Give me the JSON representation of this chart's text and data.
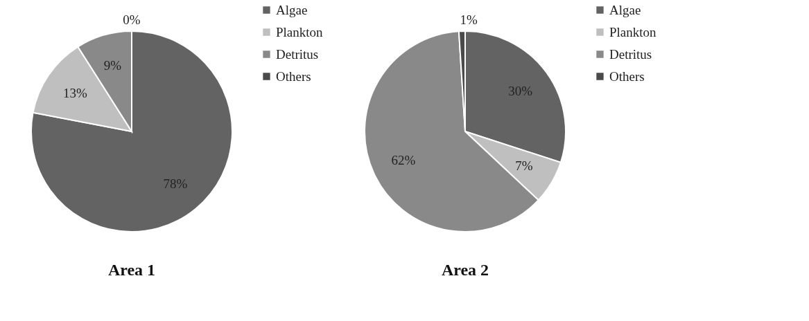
{
  "chart_data": [
    {
      "type": "pie",
      "title": "Area 1",
      "categories": [
        "Algae",
        "Plankton",
        "Detritus",
        "Others"
      ],
      "values": [
        78,
        13,
        9,
        0
      ],
      "colors": [
        "#636363",
        "#bfbfbf",
        "#898989",
        "#4a4a4a"
      ],
      "value_labels": [
        "78%",
        "13%",
        "9%",
        "0%"
      ],
      "legend": "right"
    },
    {
      "type": "pie",
      "title": "Area 2",
      "categories": [
        "Algae",
        "Plankton",
        "Detritus",
        "Others"
      ],
      "values": [
        30,
        7,
        62,
        1
      ],
      "colors": [
        "#636363",
        "#bfbfbf",
        "#898989",
        "#4a4a4a"
      ],
      "value_labels": [
        "30%",
        "7%",
        "62%",
        "1%"
      ],
      "legend": "right"
    }
  ]
}
